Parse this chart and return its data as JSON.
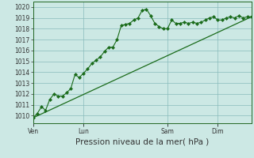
{
  "xlabel": "Pression niveau de la mer( hPa )",
  "bg_color": "#cce8e4",
  "grid_color": "#88bbbb",
  "line_color": "#1a6b1a",
  "marker": "D",
  "marker_size": 2,
  "ylim": [
    1009.3,
    1020.5
  ],
  "yticks": [
    1010,
    1011,
    1012,
    1013,
    1014,
    1015,
    1016,
    1017,
    1018,
    1019,
    1020
  ],
  "day_labels": [
    "Ven",
    "Lun",
    "Sam",
    "Dim"
  ],
  "day_positions": [
    0,
    72,
    192,
    264
  ],
  "xlim": [
    0,
    312
  ],
  "forecast_x": [
    0,
    6,
    12,
    18,
    24,
    30,
    36,
    42,
    48,
    54,
    60,
    66,
    72,
    78,
    84,
    90,
    96,
    102,
    108,
    114,
    120,
    126,
    132,
    138,
    144,
    150,
    156,
    162,
    168,
    174,
    180,
    186,
    192,
    198,
    204,
    210,
    216,
    222,
    228,
    234,
    240,
    246,
    252,
    258,
    264,
    270,
    276,
    282,
    288,
    294,
    300,
    306,
    312
  ],
  "forecast_y": [
    1009.8,
    1010.2,
    1010.8,
    1010.5,
    1011.5,
    1012.0,
    1011.8,
    1011.8,
    1012.1,
    1012.5,
    1013.8,
    1013.5,
    1013.9,
    1014.3,
    1014.8,
    1015.1,
    1015.4,
    1015.9,
    1016.3,
    1016.3,
    1017.0,
    1018.3,
    1018.4,
    1018.5,
    1018.8,
    1019.0,
    1019.7,
    1019.8,
    1019.2,
    1018.5,
    1018.2,
    1018.0,
    1018.0,
    1018.8,
    1018.5,
    1018.5,
    1018.6,
    1018.5,
    1018.6,
    1018.5,
    1018.6,
    1018.8,
    1019.0,
    1019.1,
    1018.8,
    1018.8,
    1019.0,
    1019.1,
    1019.0,
    1019.2,
    1019.0,
    1019.1,
    1019.1
  ],
  "trend_x": [
    0,
    312
  ],
  "trend_y": [
    1009.8,
    1019.1
  ],
  "fontsize_tick": 5.5,
  "fontsize_xlabel": 7.5,
  "tick_color": "#333333",
  "spine_color": "#226622"
}
